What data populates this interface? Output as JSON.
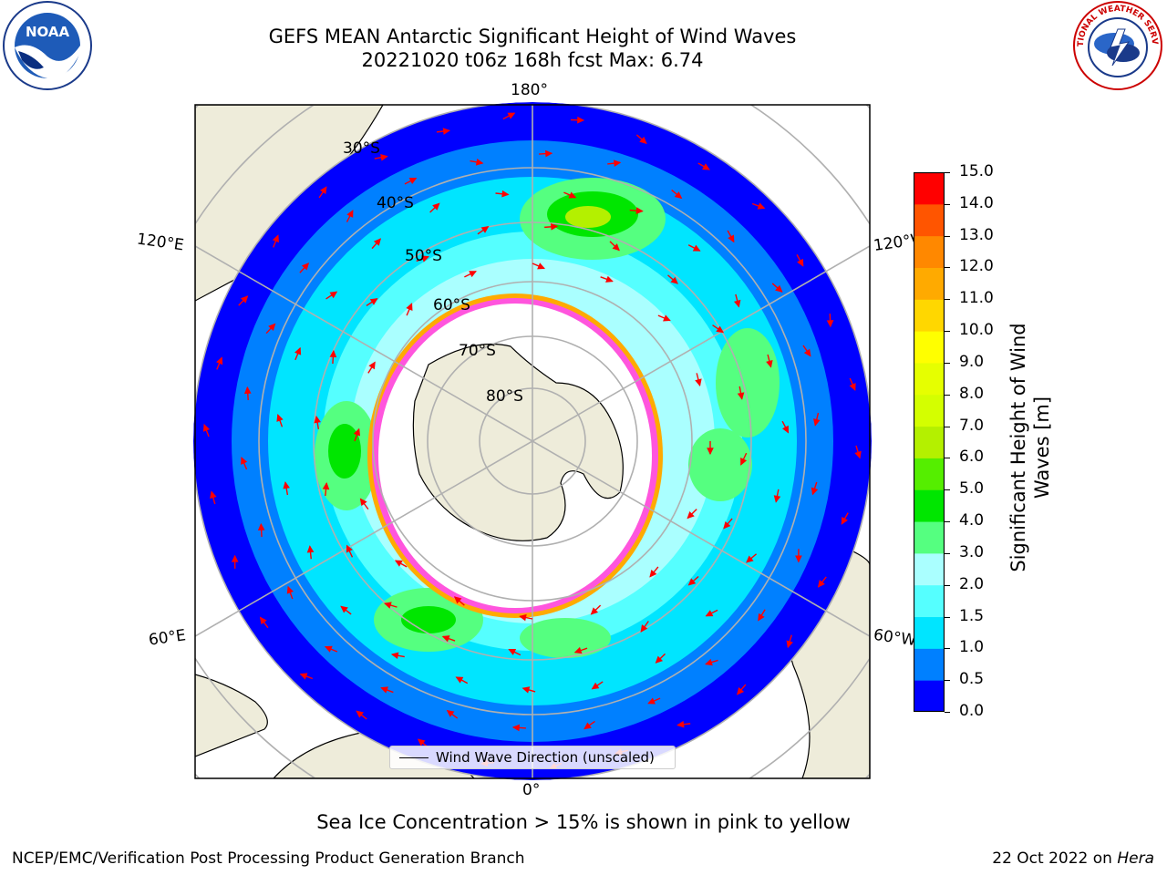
{
  "title": {
    "line1": "GEFS MEAN Antarctic Significant Height of Wind Waves",
    "line2": "20221020 t06z 168h fcst   Max: 6.74"
  },
  "logos": {
    "left": {
      "icon": "noaa-logo",
      "text": "NOAA"
    },
    "right": {
      "icon": "nws-logo",
      "text": "NATIONAL WEATHER SERVICE"
    }
  },
  "map": {
    "projection": "south-polar-stereographic",
    "meridian_labels": {
      "top": "180°",
      "bottom": "0°",
      "left_upper": "120°E",
      "left_lower": "60°E",
      "right_upper": "120°W",
      "right_lower": "60°W"
    },
    "latitude_labels": [
      "30°S",
      "40°S",
      "50°S",
      "60°S",
      "70°S",
      "80°S"
    ],
    "colors": {
      "land": "#eeecda",
      "ocean_base": "#0000ff",
      "sea_ice": "#ff55dd",
      "arrow": "#ff0000",
      "grid": "#b0b0b0"
    }
  },
  "legend": {
    "label": "Wind Wave Direction (unscaled)"
  },
  "colorbar": {
    "label": "Significant Height of Wind Waves [m]",
    "label_line1": "Significant Height of Wind",
    "label_line2": "Waves [m]",
    "ticks": [
      "0.0",
      "0.5",
      "1.0",
      "1.5",
      "2.0",
      "3.0",
      "4.0",
      "5.0",
      "6.0",
      "7.0",
      "8.0",
      "9.0",
      "10.0",
      "11.0",
      "12.0",
      "13.0",
      "14.0",
      "15.0"
    ],
    "colors": [
      "#0000ff",
      "#0080ff",
      "#00e5ff",
      "#55ffff",
      "#aaffff",
      "#55ff80",
      "#00e600",
      "#55ee00",
      "#b4f000",
      "#d4ff00",
      "#e6ff00",
      "#ffff00",
      "#ffd700",
      "#ffaa00",
      "#ff8800",
      "#ff5500",
      "#ff0000"
    ]
  },
  "footer": {
    "note": "Sea Ice Concentration > 15% is shown in pink to yellow",
    "left": "NCEP/EMC/Verification Post Processing Product Generation Branch",
    "right_prefix": "22 Oct 2022 on ",
    "right_host": "Hera"
  }
}
